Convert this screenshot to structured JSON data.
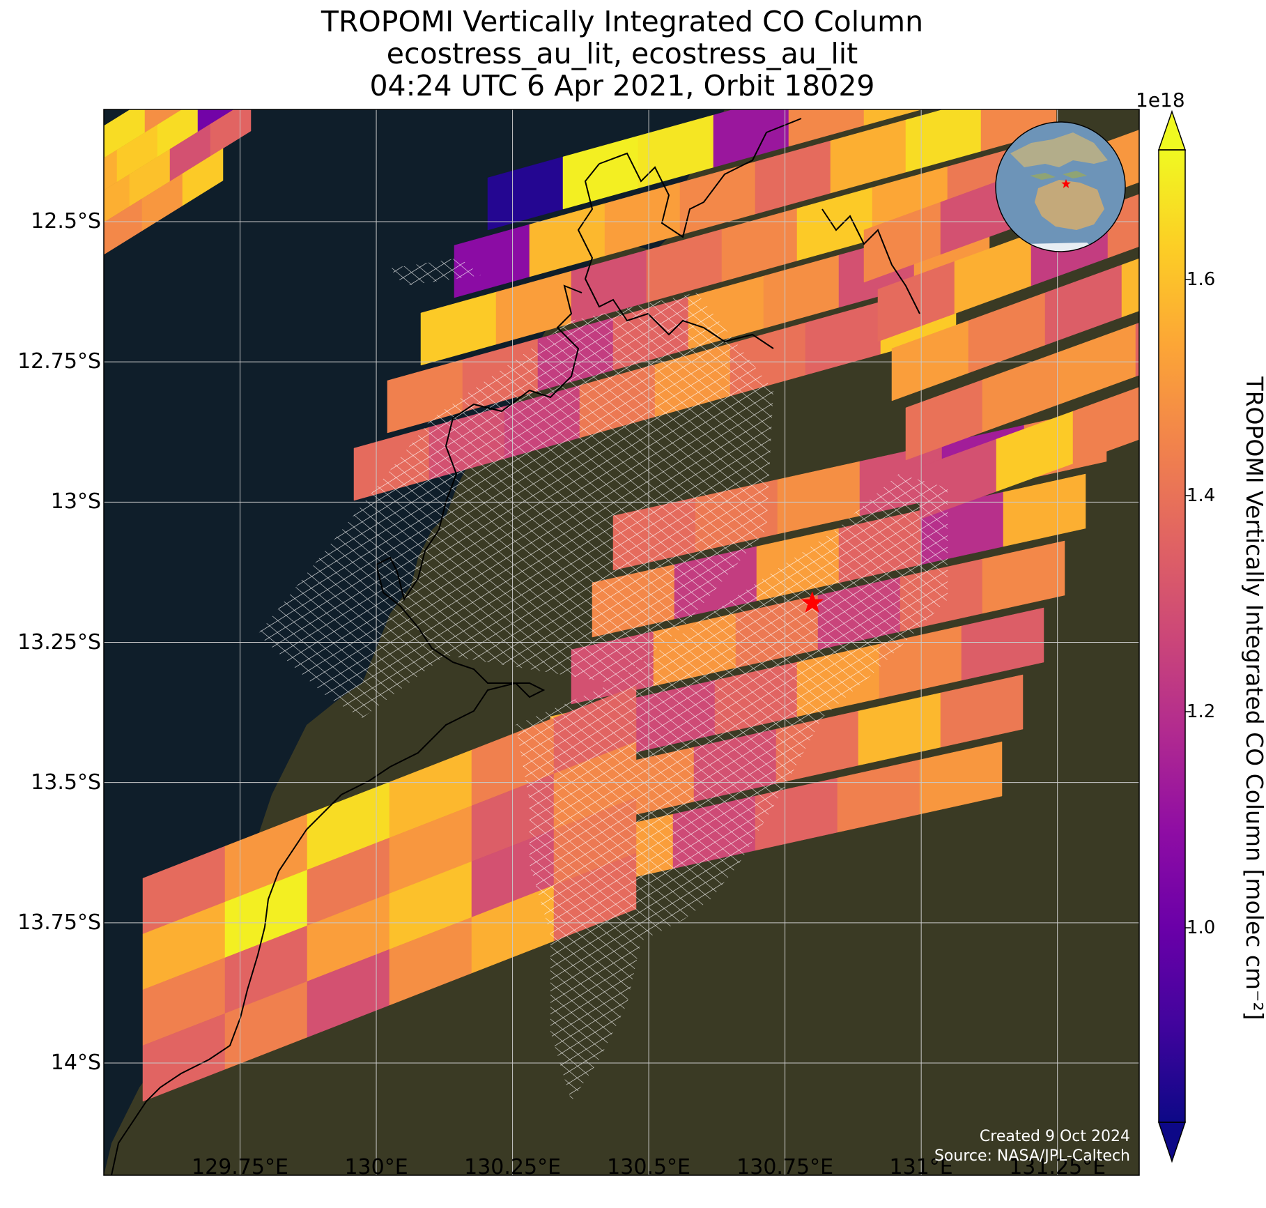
{
  "title": {
    "line1": "TROPOMI Vertically Integrated CO Column",
    "line2": "ecostress_au_lit, ecostress_au_lit",
    "line3": "04:24 UTC 6 Apr 2021, Orbit 18029"
  },
  "map": {
    "lon_range": [
      129.5,
      131.4
    ],
    "lat_range": [
      -14.2,
      -12.3
    ],
    "lat_ticks": [
      {
        "value": -12.5,
        "label": "12.5°S"
      },
      {
        "value": -12.75,
        "label": "12.75°S"
      },
      {
        "value": -13.0,
        "label": "13°S"
      },
      {
        "value": -13.25,
        "label": "13.25°S"
      },
      {
        "value": -13.5,
        "label": "13.5°S"
      },
      {
        "value": -13.75,
        "label": "13.75°S"
      },
      {
        "value": -14.0,
        "label": "14°S"
      }
    ],
    "lon_ticks": [
      {
        "value": 129.75,
        "label": "129.75°E"
      },
      {
        "value": 130.0,
        "label": "130°E"
      },
      {
        "value": 130.25,
        "label": "130.25°E"
      },
      {
        "value": 130.5,
        "label": "130.5°E"
      },
      {
        "value": 130.75,
        "label": "130.75°E"
      },
      {
        "value": 131.0,
        "label": "131°E"
      },
      {
        "value": 131.25,
        "label": "131.25°E"
      }
    ],
    "site_marker": {
      "lon": 130.8,
      "lat": -13.18,
      "color": "#ff0000"
    },
    "ocean_color": "#0f1e2a",
    "land_color": "#3a3a24",
    "grid": true,
    "inset_globe": "globe-centered-australia-with-red-star",
    "credit_line1": "Created 9 Oct 2024",
    "credit_line2": "Source: NASA/JPL-Caltech"
  },
  "colorbar": {
    "label": "TROPOMI Vertically Integrated CO Column [molec cm⁻²]",
    "exponent": "1e18",
    "vmin": 0.82,
    "vmax": 1.72,
    "colormap": "plasma",
    "ticks": [
      {
        "value": 1.0,
        "label": "1.0"
      },
      {
        "value": 1.2,
        "label": "1.2"
      },
      {
        "value": 1.4,
        "label": "1.4"
      },
      {
        "value": 1.6,
        "label": "1.6"
      }
    ]
  },
  "chart_data": {
    "type": "heatmap",
    "title": "TROPOMI Vertically Integrated CO Column",
    "xlabel": "",
    "ylabel": "",
    "x_ticks": [
      "129.75°E",
      "130°E",
      "130.25°E",
      "130.5°E",
      "130.75°E",
      "131°E",
      "131.25°E"
    ],
    "y_ticks": [
      "12.5°S",
      "12.75°S",
      "13°S",
      "13.25°S",
      "13.5°S",
      "13.75°S",
      "14°S"
    ],
    "units": "molec cm⁻² (×1e18)",
    "swaths": [
      {
        "name": "northwest",
        "values": [
          [
            1.66,
            1.48,
            1.38,
            1.18,
            1.02
          ],
          [
            1.56,
            1.62,
            1.66,
            1.02,
            1.12
          ],
          [
            1.48,
            1.56,
            1.6,
            1.3,
            1.36
          ],
          [
            1.38,
            1.42,
            1.46,
            1.5,
            1.62
          ]
        ]
      },
      {
        "name": "central",
        "values": [
          [
            0.86,
            1.7,
            1.68,
            1.12,
            1.46,
            1.58,
            1.66,
            1.52
          ],
          [
            1.08,
            1.58,
            1.52,
            1.46,
            1.38,
            1.56,
            1.66,
            1.46
          ],
          [
            1.62,
            1.52,
            1.3,
            1.4,
            1.46,
            1.62,
            1.54,
            1.42
          ],
          [
            1.44,
            1.38,
            1.24,
            1.36,
            1.52,
            1.48,
            1.3,
            1.5
          ],
          [
            1.38,
            1.3,
            1.26,
            1.42,
            1.5,
            1.4,
            1.36,
            1.62
          ]
        ]
      },
      {
        "name": "southeast",
        "values": [
          [
            1.38,
            1.42,
            1.48,
            1.3,
            1.14,
            1.44
          ],
          [
            1.46,
            1.24,
            1.52,
            1.36,
            1.2,
            1.56
          ],
          [
            1.3,
            1.5,
            1.42,
            1.26,
            1.38,
            1.46
          ],
          [
            1.56,
            1.28,
            1.36,
            1.52,
            1.46,
            1.34
          ],
          [
            1.62,
            1.46,
            1.3,
            1.4,
            1.58,
            1.42
          ],
          [
            1.48,
            1.52,
            1.28,
            1.36,
            1.44,
            1.5
          ]
        ]
      },
      {
        "name": "southwest",
        "values": [
          [
            1.38,
            1.5,
            1.66,
            1.58,
            1.44,
            1.36
          ],
          [
            1.56,
            1.7,
            1.42,
            1.5,
            1.34,
            1.46
          ],
          [
            1.44,
            1.36,
            1.52,
            1.6,
            1.3,
            1.42
          ],
          [
            1.36,
            1.44,
            1.3,
            1.48,
            1.56,
            1.38
          ]
        ]
      },
      {
        "name": "east",
        "values": [
          [
            1.46,
            1.3,
            1.18,
            1.5
          ],
          [
            1.38,
            1.56,
            1.24,
            1.42
          ],
          [
            1.52,
            1.44,
            1.34,
            1.58
          ],
          [
            1.4,
            1.48,
            1.5,
            1.36
          ],
          [
            1.3,
            1.62,
            1.44,
            1.46
          ]
        ]
      }
    ]
  }
}
